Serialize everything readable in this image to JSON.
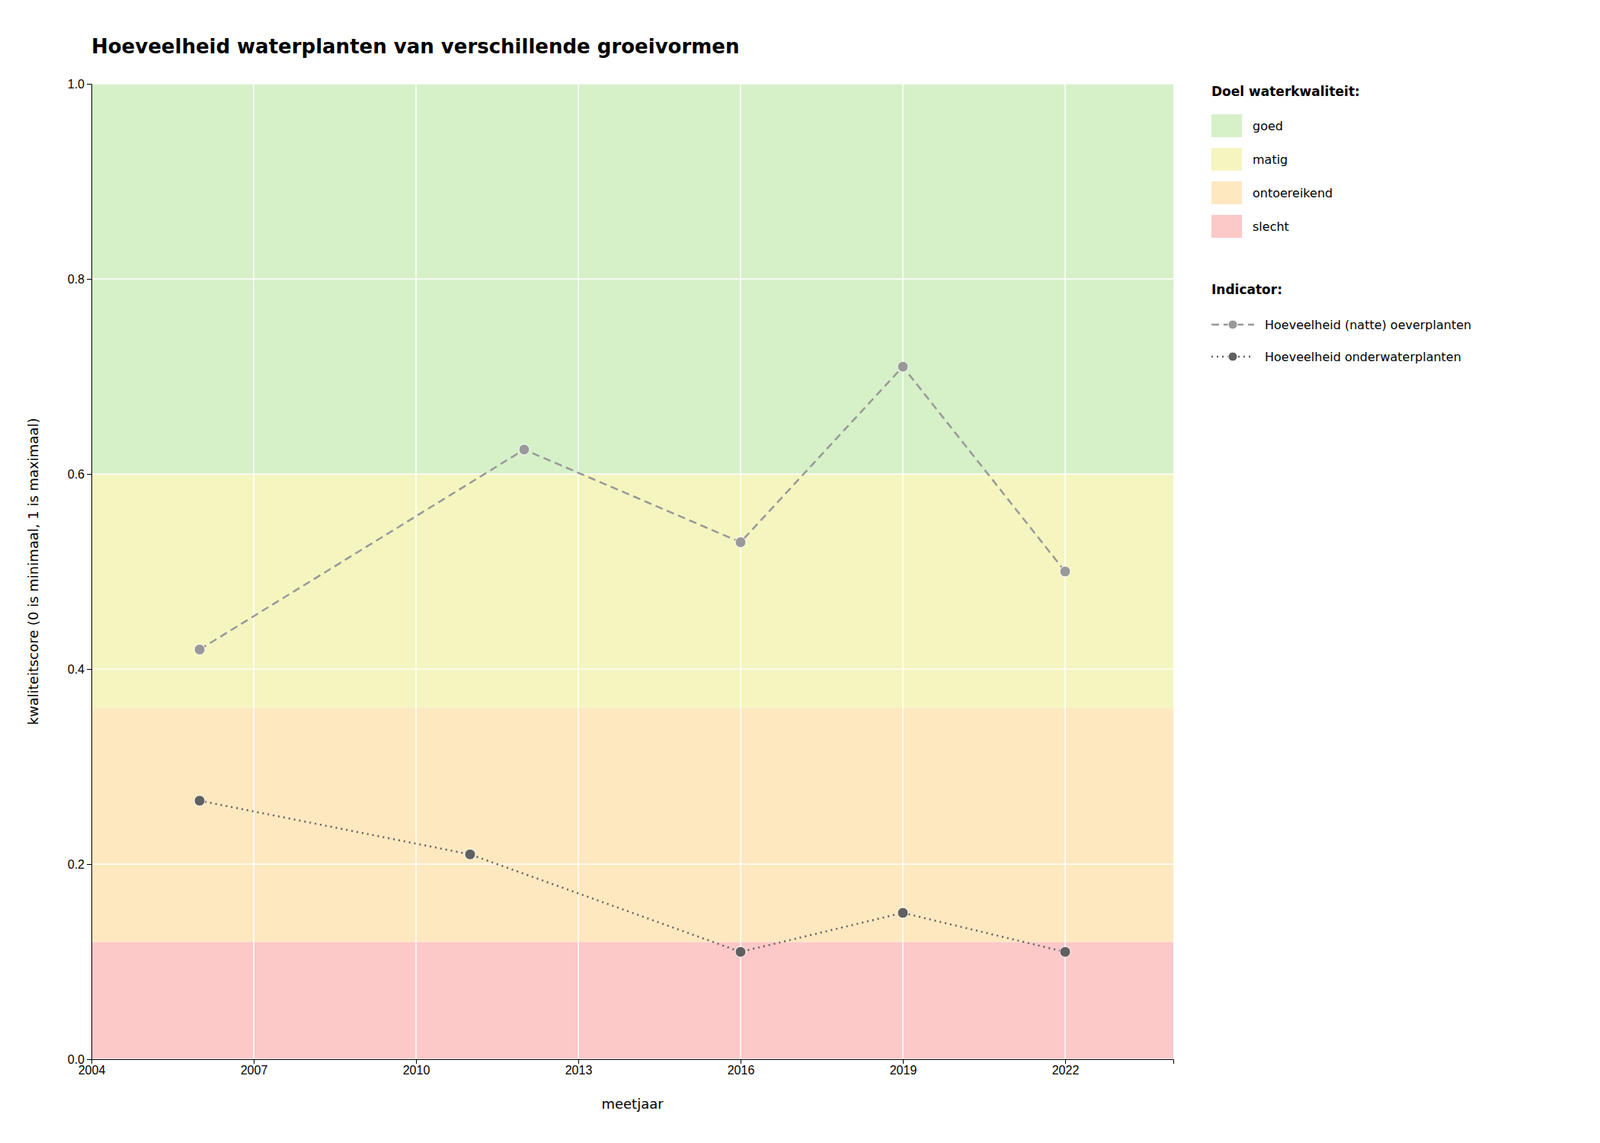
{
  "chart_data": {
    "type": "line",
    "title": "Hoeveelheid waterplanten van verschillende groeivormen",
    "x_label": "meetjaar",
    "y_label": "kwaliteitscore (0 is minimaal, 1 is maximaal)",
    "xlim": [
      2004,
      2024
    ],
    "xticks": [
      2004,
      2007,
      2010,
      2013,
      2016,
      2019,
      2022
    ],
    "ylim": [
      0.0,
      1.0
    ],
    "yticks": [
      {
        "value": 0,
        "label": "0.0"
      },
      0.2,
      0.4,
      0.6,
      0.8,
      {
        "value": 1,
        "label": "1.0"
      }
    ],
    "grid": true,
    "legend": "right",
    "bands_title": "Doel waterkwaliteit:",
    "bands": [
      {
        "name": "goed",
        "ymin": 0.6,
        "ymax": 1.0,
        "color": "#d6f0c8"
      },
      {
        "name": "matig",
        "ymin": 0.36,
        "ymax": 0.6,
        "color": "#f5f5c0"
      },
      {
        "name": "ontoereikend",
        "ymin": 0.12,
        "ymax": 0.36,
        "color": "#fde8c0"
      },
      {
        "name": "slecht",
        "ymin": 0.0,
        "ymax": 0.12,
        "color": "#fcc8c8"
      }
    ],
    "series_title": "Indicator:",
    "series": [
      {
        "name": "Hoeveelheid (natte) oeverplanten",
        "color": "#999999",
        "line_style": "dashed",
        "marker": "circle",
        "x": [
          2006,
          2012,
          2016,
          2019,
          2022
        ],
        "values": [
          0.42,
          0.625,
          0.53,
          0.71,
          0.5
        ]
      },
      {
        "name": "Hoeveelheid onderwaterplanten",
        "color": "#606060",
        "line_style": "dotted",
        "marker": "circle",
        "x": [
          2006,
          2011,
          2016,
          2019,
          2022
        ],
        "values": [
          0.265,
          0.21,
          0.11,
          0.15,
          0.11
        ]
      }
    ]
  }
}
